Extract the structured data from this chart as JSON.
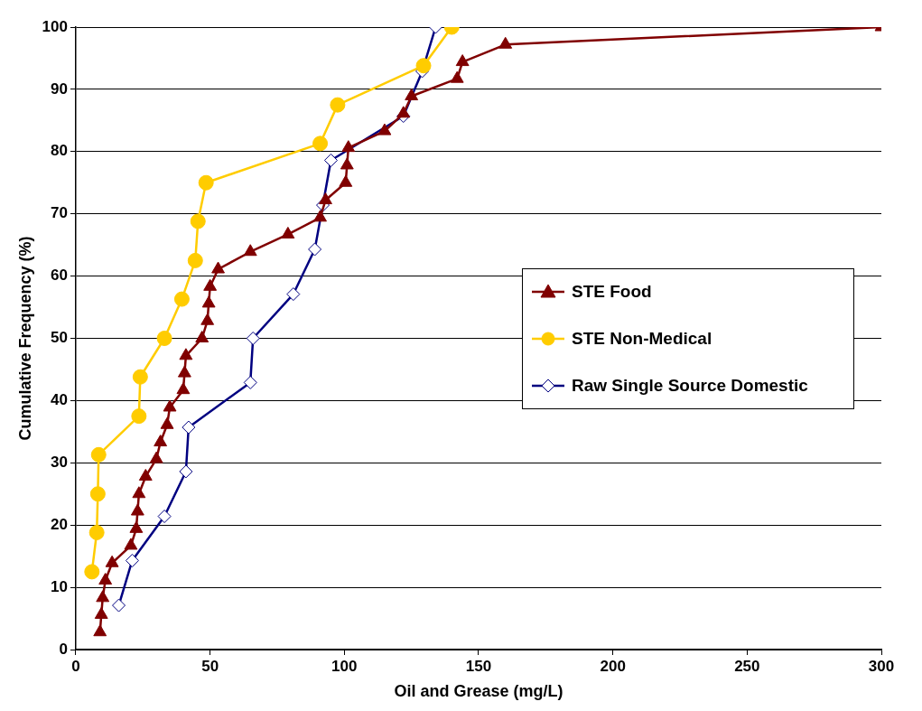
{
  "chart_data": {
    "type": "line",
    "xlabel": "Oil and Grease (mg/L)",
    "ylabel": "Cumulative Frequency (%)",
    "xlim": [
      0,
      300
    ],
    "xticks": [
      0,
      50,
      100,
      150,
      200,
      250,
      300
    ],
    "ylim": [
      0,
      100
    ],
    "yticks": [
      0,
      10,
      20,
      30,
      40,
      50,
      60,
      70,
      80,
      90,
      100
    ],
    "grid": "y",
    "legend": "right",
    "line_style": "solid",
    "series": [
      {
        "name": "STE Food",
        "color": "#800000",
        "marker": "triangle",
        "x": [
          9,
          9.5,
          10,
          11,
          13.5,
          20.5,
          22.5,
          23,
          23.5,
          26,
          30,
          31.5,
          34,
          35,
          40,
          40.5,
          41,
          47,
          49,
          49.5,
          50,
          53,
          65,
          79,
          91,
          93,
          100.5,
          101,
          101.5,
          115,
          122,
          125,
          142,
          144,
          160,
          300
        ],
        "values": [
          2.8,
          5.6,
          8.3,
          11.1,
          13.9,
          16.7,
          19.4,
          22.2,
          25,
          27.8,
          30.6,
          33.3,
          36.1,
          38.9,
          41.7,
          44.4,
          47.2,
          50,
          52.8,
          55.6,
          58.3,
          61.1,
          63.9,
          66.7,
          69.4,
          72.2,
          75,
          77.8,
          80.6,
          83.3,
          86.1,
          88.9,
          91.7,
          94.4,
          97.2,
          100
        ]
      },
      {
        "name": "STE Non-Medical",
        "color": "#ffcc00",
        "marker": "circle",
        "x": [
          6,
          7.8,
          8.2,
          8.5,
          23.5,
          24,
          33,
          39.5,
          44.5,
          45.5,
          48.5,
          91,
          97.5,
          129.5,
          140
        ],
        "values": [
          12.5,
          18.8,
          25,
          31.3,
          37.5,
          43.8,
          50,
          56.3,
          62.5,
          68.8,
          75,
          81.3,
          87.5,
          93.8,
          100
        ]
      },
      {
        "name": "Raw Single Source Domestic",
        "color": "#000080",
        "marker": "diamond",
        "x": [
          16,
          21,
          33,
          41,
          42,
          65,
          66,
          81,
          89,
          92,
          95,
          122,
          129,
          134
        ],
        "values": [
          7.1,
          14.3,
          21.4,
          28.6,
          35.7,
          42.9,
          50,
          57.1,
          64.3,
          71.4,
          78.6,
          85.7,
          92.9,
          100
        ]
      }
    ]
  }
}
